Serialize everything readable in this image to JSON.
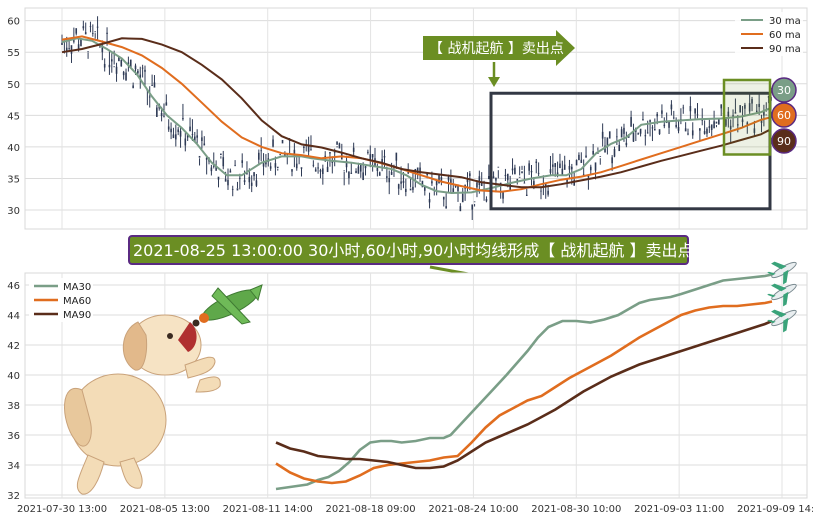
{
  "banner_text": "2021-08-25 13:00:00 30小时,60小时,90小时均线形成【 战机起航 】卖出点",
  "colors": {
    "ma30": "#7a9e87",
    "ma60": "#e06d1f",
    "ma90": "#5a2d1a",
    "candle": "#2e3a55",
    "box": "#333844",
    "signal_fill": "#6b8e23",
    "banner_bg": "#6b8e23",
    "banner_border": "#5a2a82"
  },
  "chart_data": [
    {
      "type": "line",
      "title": "",
      "ylim": [
        27,
        62
      ],
      "yticks": [
        30,
        35,
        40,
        45,
        50,
        55,
        60
      ],
      "legend": [
        "30 ma",
        "60 ma",
        "90 ma"
      ],
      "legend_position": "top-right",
      "grid": true,
      "annotation": "【 战机起航 】卖出点",
      "end_labels": [
        "30",
        "60",
        "90"
      ],
      "candle_count": 300,
      "series": [
        {
          "name": "30 ma",
          "x": [
            0,
            15,
            30,
            45,
            60,
            75,
            90,
            105,
            120,
            135,
            150,
            165,
            180,
            200,
            220,
            240,
            250,
            270,
            290,
            310,
            330,
            345,
            360,
            375,
            390,
            410,
            430,
            450,
            470,
            490,
            505,
            520,
            535,
            550,
            565,
            580,
            600,
            620,
            640,
            660,
            680,
            700,
            710
          ],
          "values": [
            56.6,
            57.2,
            56.8,
            55.5,
            54,
            51.5,
            48,
            45,
            43,
            40.5,
            37.5,
            35.5,
            35.5,
            37.5,
            38.5,
            38.5,
            38.2,
            37.8,
            37.5,
            37,
            36.5,
            35.5,
            34,
            33,
            32.7,
            32.8,
            33.5,
            34.3,
            35,
            35.5,
            35.5,
            36.5,
            39,
            40.5,
            41.5,
            43.5,
            44,
            44.2,
            44.4,
            44.5,
            44.8,
            45.5,
            46.2
          ]
        },
        {
          "name": "60 ma",
          "x": [
            0,
            20,
            40,
            60,
            80,
            100,
            120,
            140,
            160,
            180,
            200,
            220,
            240,
            260,
            280,
            300,
            320,
            340,
            360,
            380,
            400,
            420,
            440,
            460,
            480,
            500,
            520,
            540,
            560,
            580,
            600,
            620,
            640,
            660,
            680,
            700,
            710
          ],
          "values": [
            57,
            57.5,
            56.7,
            55.8,
            54.5,
            52.5,
            50,
            47,
            44,
            41.5,
            40,
            39,
            38.7,
            38.2,
            38.5,
            38.2,
            37.4,
            36.5,
            35.5,
            34.5,
            33.8,
            33.1,
            32.9,
            33.3,
            34.1,
            34.8,
            35.3,
            36,
            37,
            38,
            39,
            40,
            41,
            42,
            43,
            44.3,
            44.7
          ]
        },
        {
          "name": "90 ma",
          "x": [
            0,
            20,
            40,
            60,
            80,
            100,
            120,
            140,
            160,
            180,
            200,
            220,
            240,
            260,
            280,
            300,
            320,
            340,
            360,
            380,
            400,
            420,
            440,
            460,
            480,
            500,
            520,
            540,
            560,
            580,
            600,
            620,
            640,
            660,
            680,
            700,
            710
          ],
          "values": [
            55,
            55.5,
            56.3,
            57.2,
            57.1,
            56.2,
            55,
            53,
            50.7,
            47.7,
            44.2,
            41.7,
            40.4,
            39.9,
            39.1,
            38.2,
            37.5,
            36.5,
            36,
            35.6,
            35.2,
            34.4,
            34,
            33.6,
            33.6,
            34.1,
            34.7,
            35.3,
            36,
            36.9,
            37.8,
            38.6,
            39.4,
            40.2,
            41.1,
            42,
            42.8
          ]
        }
      ]
    },
    {
      "type": "line",
      "title": "",
      "ylim": [
        31.8,
        46.8
      ],
      "yticks": [
        32,
        34,
        36,
        38,
        40,
        42,
        44,
        46
      ],
      "xticks": [
        "2021-07-30 13:00",
        "2021-08-05 13:00",
        "2021-08-11 14:00",
        "2021-08-18 09:00",
        "2021-08-24 10:00",
        "2021-08-30 10:00",
        "2021-09-03 11:00",
        "2021-09-09 14:00"
      ],
      "legend": [
        "MA30",
        "MA60",
        "MA90"
      ],
      "legend_position": "top-left",
      "grid": true,
      "series": [
        {
          "name": "MA30",
          "x": [
            0,
            15,
            30,
            45,
            60,
            75,
            90,
            105,
            120,
            135,
            150,
            165,
            180,
            200,
            220,
            240,
            250,
            270,
            290,
            310,
            330,
            345,
            360,
            375,
            390,
            410,
            430,
            450,
            470,
            490,
            505,
            520,
            535,
            550,
            565,
            580,
            600,
            620,
            640,
            660,
            680,
            700,
            710
          ],
          "values": [
            32.4,
            32.5,
            32.6,
            32.7,
            33,
            33.2,
            33.6,
            34.2,
            35,
            35.5,
            35.6,
            35.6,
            35.5,
            35.6,
            35.8,
            35.8,
            36,
            37,
            38,
            39,
            40,
            40.8,
            41.6,
            42.5,
            43.2,
            43.6,
            43.6,
            43.5,
            43.7,
            44,
            44.4,
            44.8,
            45,
            45.1,
            45.2,
            45.4,
            45.7,
            46,
            46.3,
            46.4,
            46.5,
            46.6,
            46.7
          ]
        },
        {
          "name": "MA60",
          "x": [
            0,
            20,
            40,
            60,
            80,
            100,
            120,
            140,
            160,
            180,
            200,
            220,
            240,
            260,
            280,
            300,
            320,
            340,
            360,
            380,
            400,
            420,
            440,
            460,
            480,
            500,
            520,
            540,
            560,
            580,
            600,
            620,
            640,
            660,
            680,
            700,
            710
          ],
          "values": [
            34.1,
            33.5,
            33.1,
            32.9,
            32.8,
            32.9,
            33.3,
            33.8,
            34,
            34.1,
            34.2,
            34.3,
            34.5,
            34.6,
            35.5,
            36.5,
            37.3,
            37.8,
            38.3,
            38.6,
            39.2,
            39.8,
            40.3,
            40.8,
            41.3,
            41.9,
            42.5,
            43,
            43.5,
            44,
            44.3,
            44.5,
            44.6,
            44.6,
            44.7,
            44.8,
            44.9
          ]
        },
        {
          "name": "MA90",
          "x": [
            0,
            20,
            40,
            60,
            80,
            100,
            120,
            140,
            160,
            180,
            200,
            220,
            240,
            260,
            280,
            300,
            320,
            340,
            360,
            380,
            400,
            420,
            440,
            460,
            480,
            500,
            520,
            540,
            560,
            580,
            600,
            620,
            640,
            660,
            680,
            700,
            710
          ],
          "values": [
            35.5,
            35.1,
            34.9,
            34.6,
            34.5,
            34.4,
            34.4,
            34.3,
            34.2,
            34,
            33.8,
            33.8,
            33.9,
            34.3,
            34.9,
            35.5,
            35.9,
            36.3,
            36.7,
            37.2,
            37.7,
            38.3,
            38.9,
            39.4,
            39.9,
            40.3,
            40.7,
            41,
            41.3,
            41.6,
            41.9,
            42.2,
            42.5,
            42.8,
            43.1,
            43.4,
            43.6
          ]
        }
      ]
    }
  ]
}
